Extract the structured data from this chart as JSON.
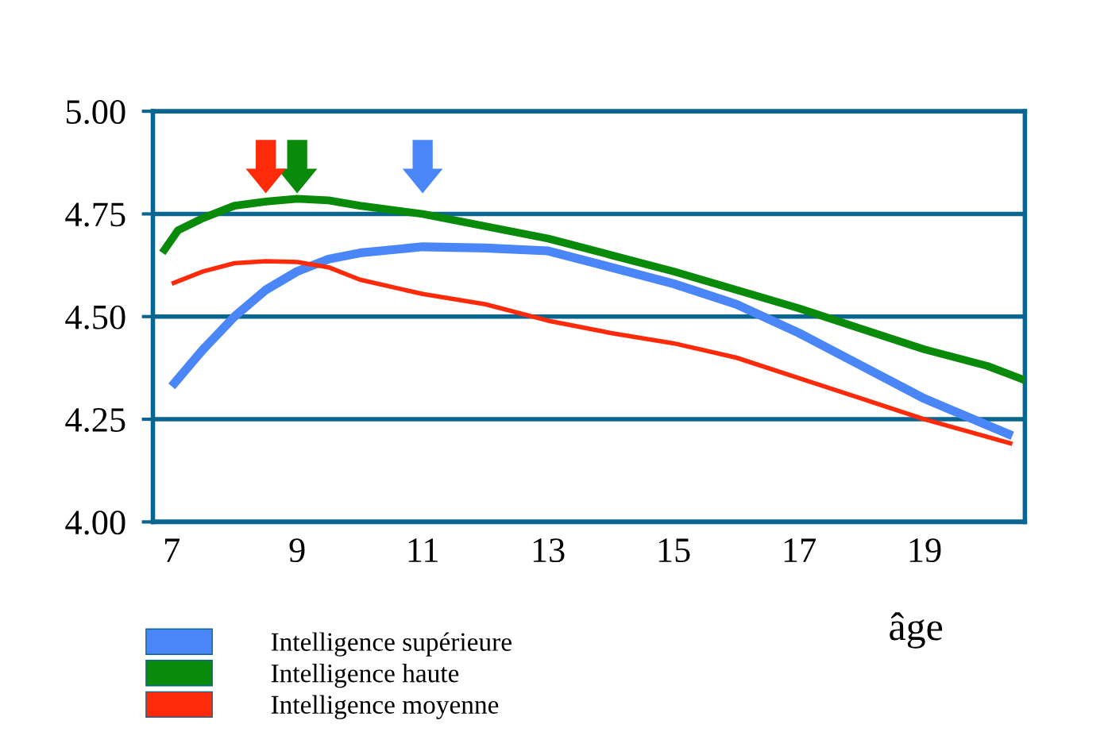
{
  "chart_data": {
    "type": "line",
    "xlabel": "âge",
    "xlim": [
      6.7,
      20.6
    ],
    "xticks": [
      7,
      9,
      11,
      13,
      15,
      17,
      19
    ],
    "ylim": [
      4.0,
      5.0
    ],
    "yticks": [
      {
        "value": 4.0,
        "label": "4.00"
      },
      {
        "value": 4.25,
        "label": "4.25"
      },
      {
        "value": 4.5,
        "label": "4.50"
      },
      {
        "value": 4.75,
        "label": "4.75"
      },
      {
        "value": 5.0,
        "label": "5.00"
      }
    ],
    "grid": "y",
    "legend": "bottom left",
    "line_style": "solid",
    "marker": "none",
    "series": [
      {
        "name": "Intelligence supérieure",
        "color": "#4a86f7",
        "x": [
          7,
          7.5,
          8,
          8.5,
          9,
          9.5,
          10,
          11,
          12,
          13,
          14,
          15,
          16,
          17,
          18,
          19,
          20.4
        ],
        "values": [
          4.33,
          4.42,
          4.5,
          4.565,
          4.61,
          4.64,
          4.655,
          4.67,
          4.667,
          4.66,
          4.62,
          4.58,
          4.53,
          4.46,
          4.38,
          4.3,
          4.21
        ]
      },
      {
        "name": "Intelligence haute",
        "color": "#0a8a0a",
        "x": [
          6.85,
          7.1,
          7.5,
          8,
          8.5,
          9,
          9.5,
          10,
          11,
          12,
          13,
          14,
          15,
          16,
          17,
          18,
          19,
          20,
          20.6
        ],
        "values": [
          4.655,
          4.71,
          4.74,
          4.77,
          4.78,
          4.787,
          4.783,
          4.77,
          4.75,
          4.72,
          4.69,
          4.65,
          4.61,
          4.565,
          4.52,
          4.47,
          4.42,
          4.38,
          4.345
        ]
      },
      {
        "name": "Intelligence moyenne",
        "color": "#ff2a0a",
        "x": [
          7,
          7.5,
          8,
          8.5,
          9,
          9.5,
          10,
          11,
          12,
          13,
          14,
          15,
          16,
          17,
          18,
          19,
          20.4
        ],
        "values": [
          4.58,
          4.61,
          4.63,
          4.635,
          4.633,
          4.62,
          4.59,
          4.555,
          4.53,
          4.49,
          4.46,
          4.435,
          4.4,
          4.35,
          4.3,
          4.25,
          4.19
        ]
      }
    ]
  }
}
